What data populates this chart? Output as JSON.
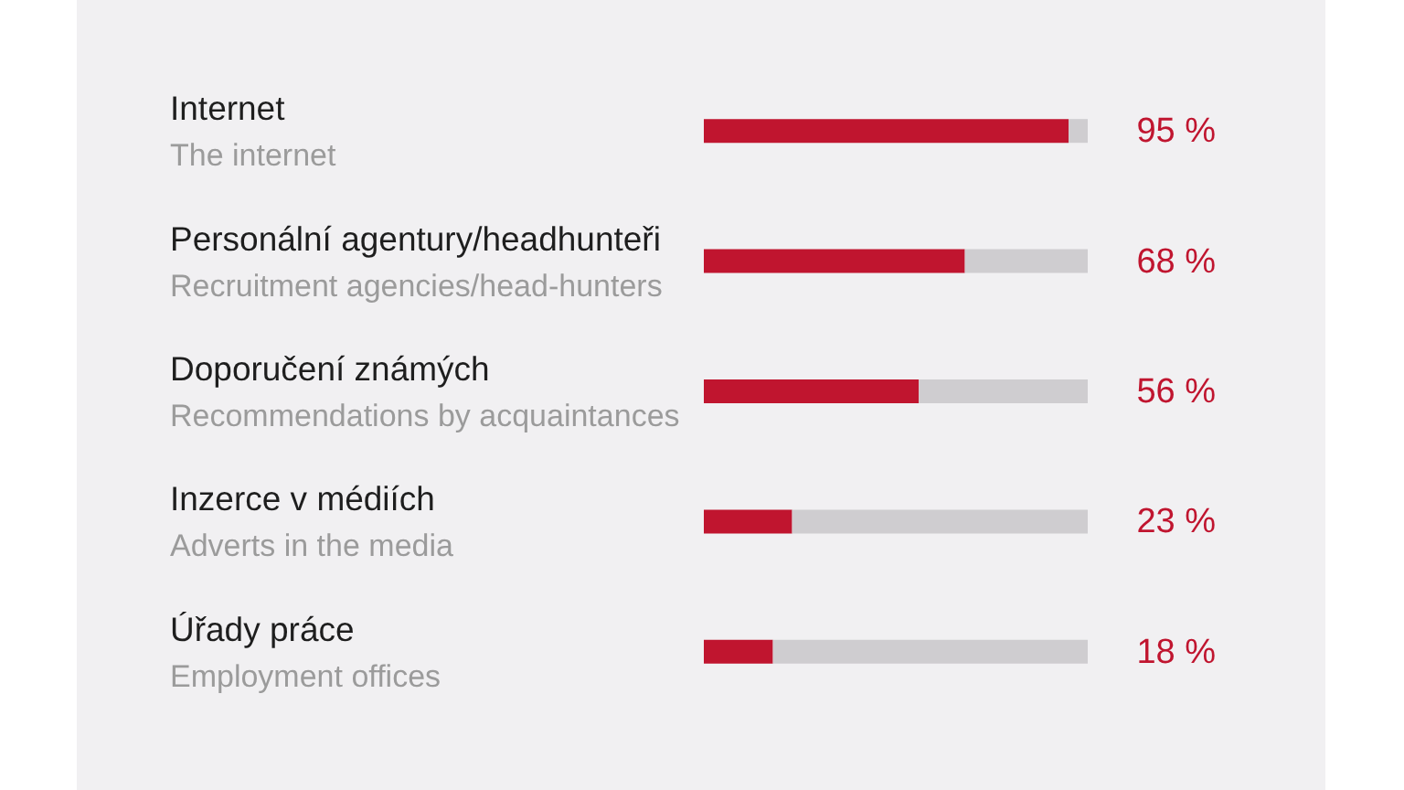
{
  "chart_data": {
    "type": "bar",
    "orientation": "horizontal",
    "stacked": true,
    "categories": [
      "Internet\nThe internet",
      "Personální agentury/headhunteři\nRecruitment agencies/head-hunters",
      "Doporučení známých\nRecommendations by acquaintances",
      "Inzerce v médiích\nAdverts in the media",
      "Úřady práce\nEmployment offices"
    ],
    "xlim": [
      0,
      100
    ],
    "series": [
      {
        "color": "#c0152f",
        "values": [
          95,
          68,
          56,
          23,
          18
        ],
        "value_labels": [
          "95 %",
          "68 %",
          "56 %",
          "23 %",
          "18 %"
        ]
      },
      {
        "color": "#cfcdd0",
        "values": [
          5,
          32,
          44,
          77,
          82
        ]
      }
    ]
  }
}
